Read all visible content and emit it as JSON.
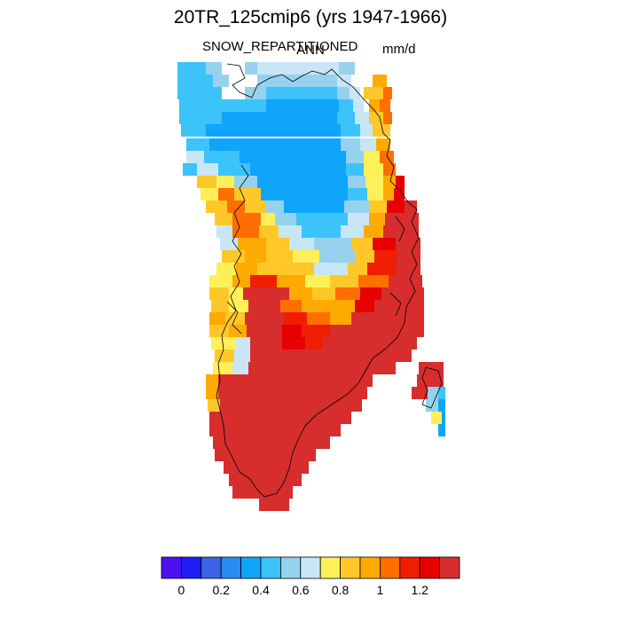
{
  "title": "20TR_125cmip6 (yrs 1947-1966)",
  "variable": "SNOW_REPARTITIONED",
  "season": "ANN",
  "units": "mm/d",
  "colorbar": {
    "colors": [
      "#4b10f0",
      "#1e1ef5",
      "#3c64e6",
      "#288cf5",
      "#0fa5fa",
      "#3cc3fa",
      "#96d2ee",
      "#c8e6f5",
      "#fff05a",
      "#ffc828",
      "#ffaa00",
      "#ff6e00",
      "#f01e00",
      "#e60000",
      "#d72d2d"
    ],
    "labels": [
      "0",
      "0.2",
      "0.4",
      "0.6",
      "0.8",
      "1",
      "1.2"
    ]
  }
}
